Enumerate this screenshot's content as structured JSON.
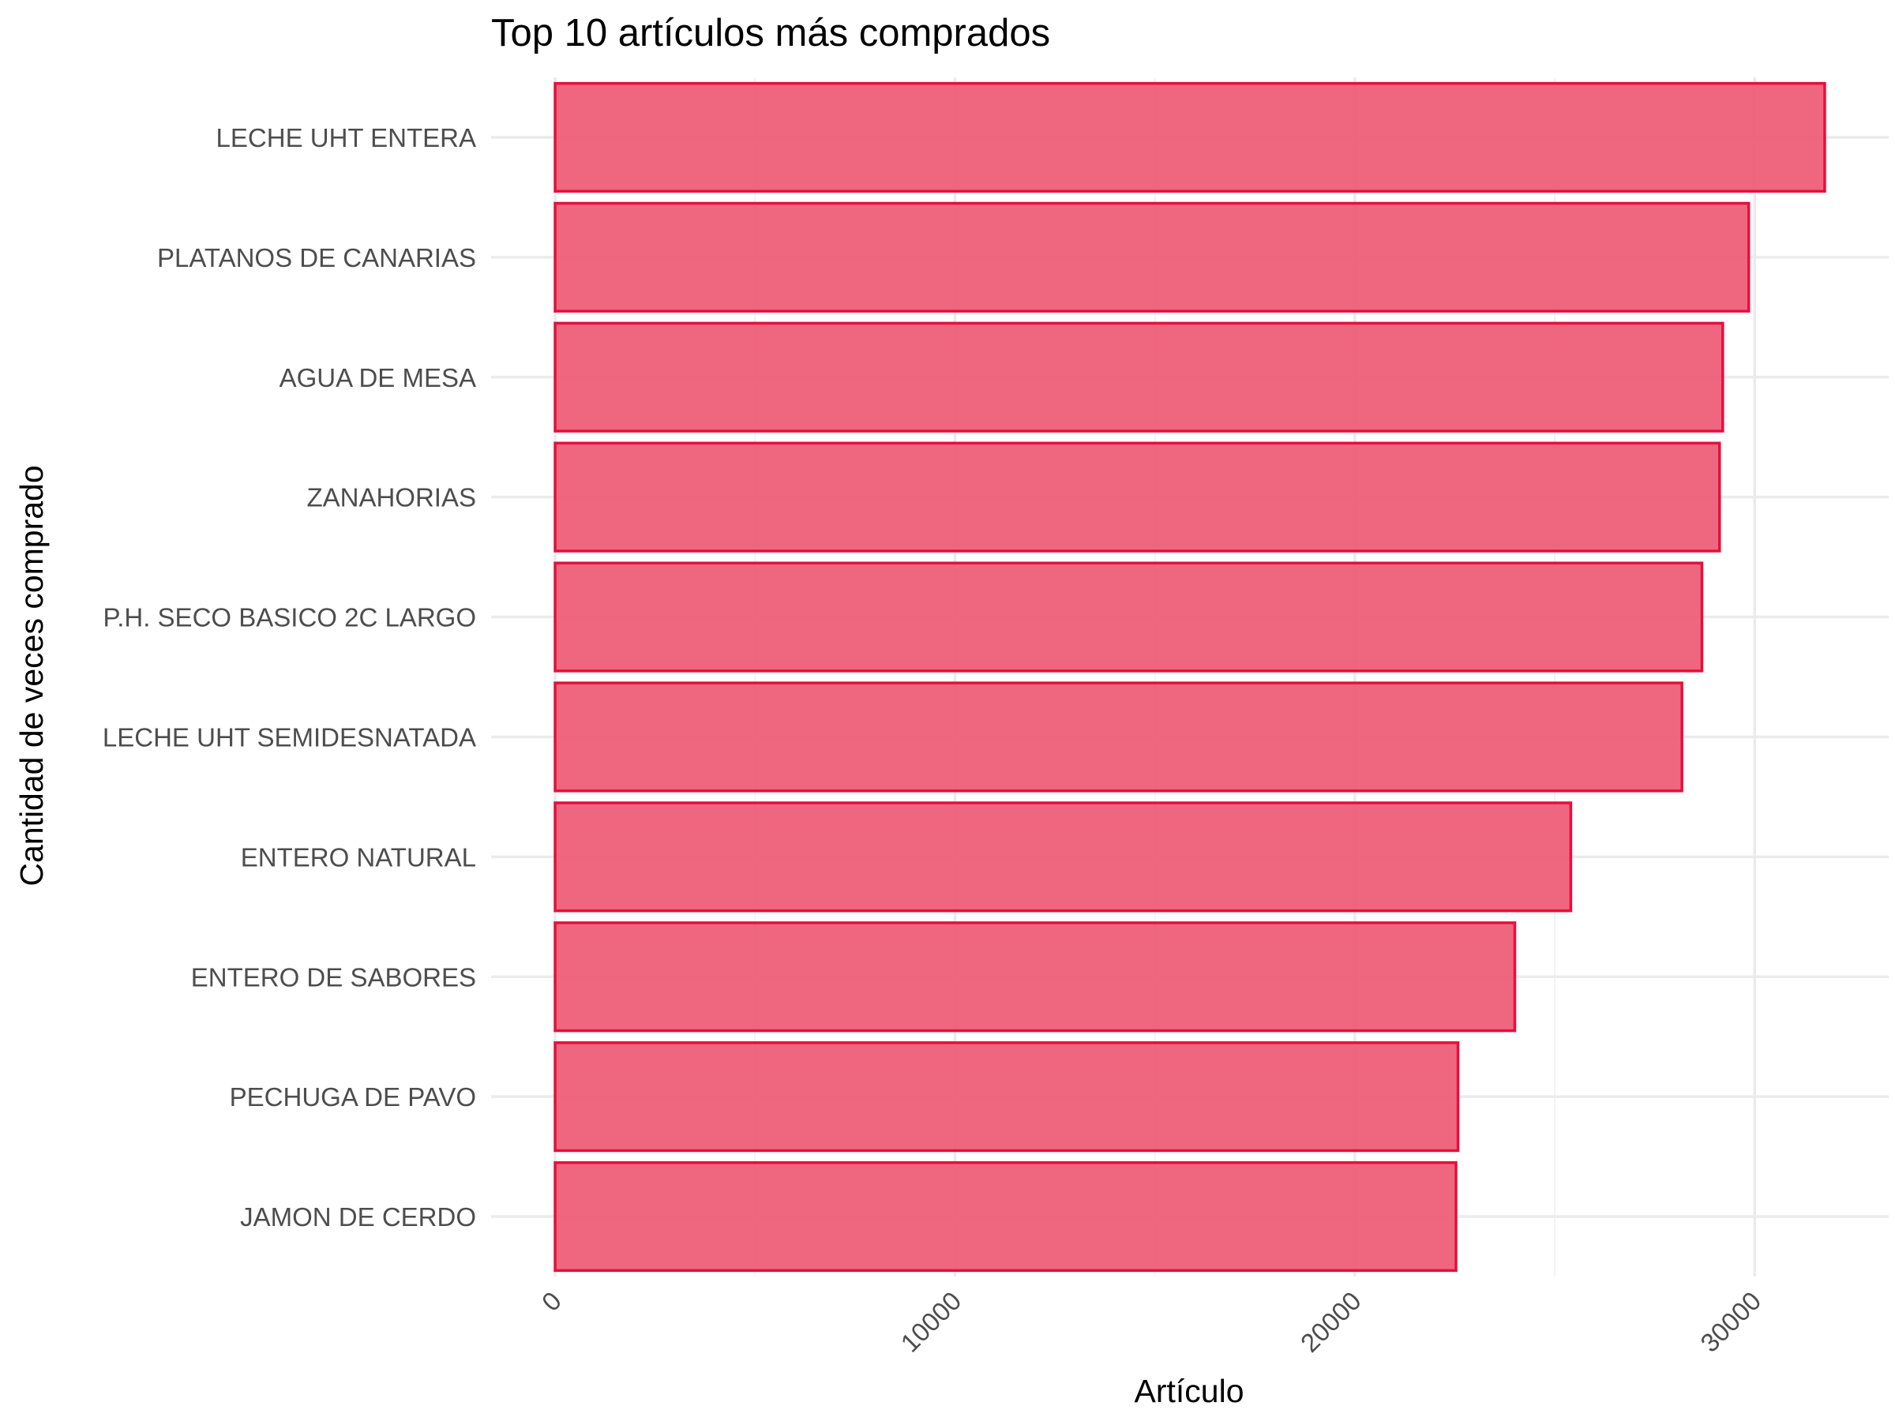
{
  "chart_data": {
    "type": "bar",
    "orientation": "horizontal",
    "title": "Top 10 artículos más comprados",
    "xlabel": "Artículo",
    "ylabel": "Cantidad de veces comprado",
    "categories": [
      "LECHE UHT ENTERA",
      "PLATANOS DE CANARIAS",
      "AGUA DE MESA",
      "ZANAHORIAS",
      "P.H. SECO BASICO 2C LARGO",
      "LECHE UHT SEMIDESNATADA",
      "ENTERO NATURAL",
      "ENTERO DE SABORES",
      "PECHUGA DE PAVO",
      "JAMON DE CERDO"
    ],
    "values": [
      31750,
      29850,
      29200,
      29120,
      28680,
      28180,
      25400,
      24000,
      22580,
      22530
    ],
    "xlim": [
      -1600,
      33350
    ],
    "xticks": [
      0,
      10000,
      20000,
      30000
    ],
    "xtick_labels": [
      "0",
      "10000",
      "20000",
      "30000"
    ],
    "grid": true,
    "bar_fill": "#ee5a73",
    "bar_outline": "#e60f3c"
  }
}
